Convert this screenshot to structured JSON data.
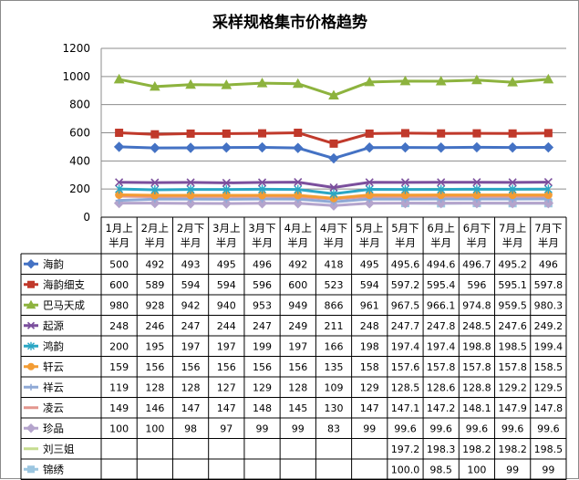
{
  "chart_data": {
    "type": "line",
    "title": "采样规格集市价格趋势",
    "ylim": [
      0,
      1200
    ],
    "yticks": [
      0,
      200,
      400,
      600,
      800,
      1000,
      1200
    ],
    "grid": true,
    "legend": "table-left",
    "categories": [
      [
        "1月上",
        "半月"
      ],
      [
        "2月上",
        "半月"
      ],
      [
        "2月下",
        "半月"
      ],
      [
        "3月上",
        "半月"
      ],
      [
        "3月下",
        "半月"
      ],
      [
        "4月上",
        "半月"
      ],
      [
        "4月下",
        "半月"
      ],
      [
        "5月上",
        "半月"
      ],
      [
        "5月下",
        "半月"
      ],
      [
        "6月上",
        "半月"
      ],
      [
        "6月下",
        "半月"
      ],
      [
        "7月上",
        "半月"
      ],
      [
        "7月下",
        "半月"
      ]
    ],
    "series": [
      {
        "name": "海韵",
        "color": "#4472c4",
        "marker": "diamond",
        "values": [
          500,
          492,
          493,
          495,
          496,
          492,
          418,
          495,
          495.6,
          494.6,
          496.7,
          495.2,
          496
        ],
        "labels": [
          "500",
          "492",
          "493",
          "495",
          "496",
          "492",
          "418",
          "495",
          "495.6",
          "494.6",
          "496.7",
          "495.2",
          "496"
        ]
      },
      {
        "name": "海韵细支",
        "color": "#c0392b",
        "marker": "square",
        "values": [
          600,
          589,
          594,
          594,
          596,
          600,
          523,
          594,
          597.2,
          595.4,
          596,
          595.1,
          597.8
        ],
        "labels": [
          "600",
          "589",
          "594",
          "594",
          "596",
          "600",
          "523",
          "594",
          "597.2",
          "595.4",
          "596",
          "595.1",
          "597.8"
        ]
      },
      {
        "name": "巴马天成",
        "color": "#8db33e",
        "marker": "triangle",
        "values": [
          980,
          928,
          942,
          940,
          953,
          949,
          866,
          961,
          967.5,
          966.1,
          974.8,
          959.5,
          980.3
        ],
        "labels": [
          "980",
          "928",
          "942",
          "940",
          "953",
          "949",
          "866",
          "961",
          "967.5",
          "966.1",
          "974.8",
          "959.5",
          "980.3"
        ]
      },
      {
        "name": "起源",
        "color": "#7b4f9d",
        "marker": "x",
        "values": [
          248,
          246,
          247,
          244,
          247,
          249,
          211,
          248,
          247.7,
          247.8,
          248.5,
          247.6,
          249.2
        ],
        "labels": [
          "248",
          "246",
          "247",
          "244",
          "247",
          "249",
          "211",
          "248",
          "247.7",
          "247.8",
          "248.5",
          "247.6",
          "249.2"
        ]
      },
      {
        "name": "鸿韵",
        "color": "#2aa6c4",
        "marker": "star",
        "values": [
          200,
          195,
          197,
          197,
          199,
          197,
          166,
          198,
          197.4,
          197.4,
          198.8,
          198.5,
          199.4
        ],
        "labels": [
          "200",
          "195",
          "197",
          "197",
          "199",
          "197",
          "166",
          "198",
          "197.4",
          "197.4",
          "198.8",
          "198.5",
          "199.4"
        ]
      },
      {
        "name": "轩云",
        "color": "#f39c34",
        "marker": "circle",
        "values": [
          159,
          156,
          156,
          156,
          156,
          156,
          135,
          158,
          157.6,
          157.8,
          157.8,
          157.8,
          158.5
        ],
        "labels": [
          "159",
          "156",
          "156",
          "156",
          "156",
          "156",
          "135",
          "158",
          "157.6",
          "157.8",
          "157.8",
          "157.8",
          "158.5"
        ]
      },
      {
        "name": "祥云",
        "color": "#8fa9d6",
        "marker": "plus",
        "values": [
          119,
          128,
          128,
          127,
          129,
          128,
          109,
          129,
          128.5,
          128.6,
          128.8,
          129.2,
          129.5
        ],
        "labels": [
          "119",
          "128",
          "128",
          "127",
          "129",
          "128",
          "109",
          "129",
          "128.5",
          "128.6",
          "128.8",
          "129.2",
          "129.5"
        ]
      },
      {
        "name": "凌云",
        "color": "#e3968e",
        "marker": "none",
        "values": [
          149,
          146,
          147,
          147,
          148,
          145,
          130,
          147,
          147.1,
          147.2,
          148.1,
          147.9,
          147.8
        ],
        "labels": [
          "149",
          "146",
          "147",
          "147",
          "148",
          "145",
          "130",
          "147",
          "147.1",
          "147.2",
          "148.1",
          "147.9",
          "147.8"
        ]
      },
      {
        "name": "珍品",
        "color": "#b4a4cc",
        "marker": "diamond",
        "values": [
          100,
          100,
          98,
          97,
          99,
          99,
          83,
          99,
          99.6,
          99.6,
          99.6,
          99.6,
          99.6
        ],
        "labels": [
          "100",
          "100",
          "98",
          "97",
          "99",
          "99",
          "83",
          "99",
          "99.6",
          "99.6",
          "99.6",
          "99.6",
          "99.6"
        ]
      },
      {
        "name": "刘三姐",
        "color": "#c5dc8f",
        "marker": "none",
        "values": [
          null,
          null,
          null,
          null,
          null,
          null,
          null,
          null,
          197.2,
          198.3,
          198.2,
          198.2,
          198.5
        ],
        "labels": [
          "",
          "",
          "",
          "",
          "",
          "",
          "",
          "",
          "197.2",
          "198.3",
          "198.2",
          "198.2",
          "198.5"
        ]
      },
      {
        "name": "锦绣",
        "color": "#9cc6e0",
        "marker": "square",
        "values": [
          null,
          null,
          null,
          null,
          null,
          null,
          null,
          null,
          100.0,
          98.5,
          100,
          99,
          99
        ],
        "labels": [
          "",
          "",
          "",
          "",
          "",
          "",
          "",
          "",
          "100.0",
          "98.5",
          "100",
          "99",
          "99"
        ]
      }
    ]
  }
}
